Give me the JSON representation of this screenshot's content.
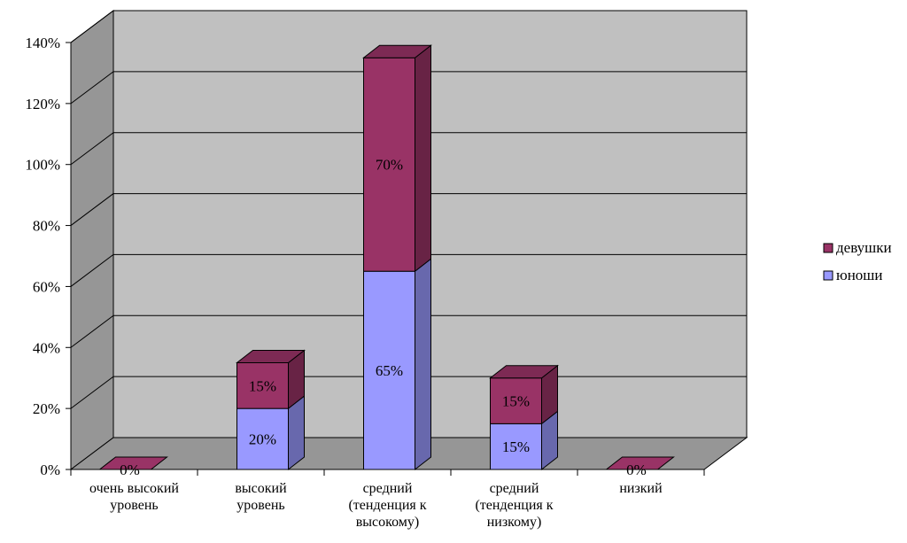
{
  "chart_data": {
    "type": "bar",
    "stacked": true,
    "three_d": true,
    "categories": [
      [
        "очень высокий",
        "уровень"
      ],
      [
        "высокий",
        "уровень"
      ],
      [
        "средний",
        "(тенденция к",
        "высокому)"
      ],
      [
        "средний",
        "(тенденция к",
        "низкому)"
      ],
      [
        "низкий"
      ]
    ],
    "series": [
      {
        "name": "юноши",
        "values": [
          0,
          20,
          65,
          15,
          0
        ],
        "labels": [
          "",
          "20%",
          "65%",
          "15%",
          ""
        ]
      },
      {
        "name": "девушки",
        "values": [
          0,
          15,
          70,
          15,
          0
        ],
        "labels": [
          "0%",
          "15%",
          "70%",
          "15%",
          "0%"
        ]
      }
    ],
    "colors": {
      "юноши": "#9999ff",
      "девушки": "#993366",
      "wall": "#c0c0c0",
      "wall_side": "#969696",
      "floor": "#969696"
    },
    "y_ticks": [
      "0%",
      "20%",
      "40%",
      "60%",
      "80%",
      "100%",
      "120%",
      "140%"
    ],
    "ylim": [
      0,
      140
    ],
    "grid": true,
    "legend": "right",
    "legend_order": [
      "девушки",
      "юноши"
    ]
  }
}
